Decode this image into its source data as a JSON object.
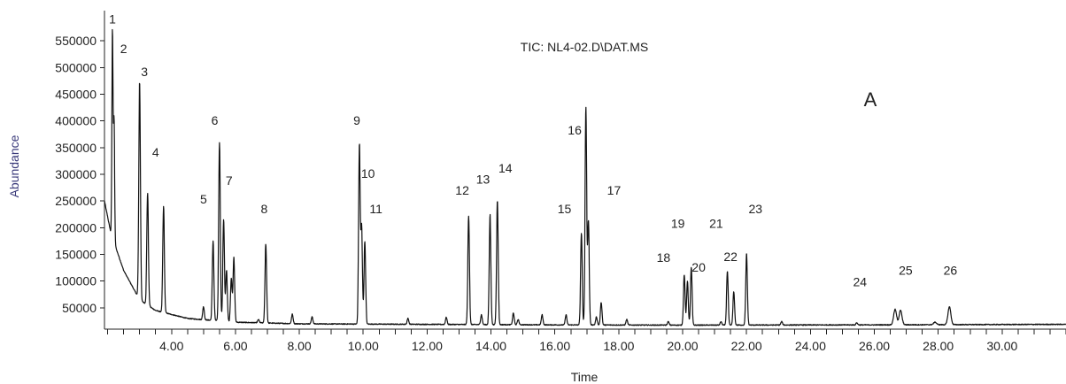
{
  "chart_data": {
    "type": "line",
    "title": "TIC: NL4-02.D\\DAT.MS",
    "panel_label": "A",
    "xlabel": "Time",
    "ylabel": "Abundance",
    "xlim": [
      1.9,
      32.0
    ],
    "ylim": [
      10000,
      600000
    ],
    "x_ticks": [
      "4.00",
      "6.00",
      "8.00",
      "10.00",
      "12.00",
      "14.00",
      "16.00",
      "18.00",
      "20.00",
      "22.00",
      "24.00",
      "26.00",
      "28.00",
      "30.00"
    ],
    "y_ticks": [
      "50000",
      "100000",
      "150000",
      "200000",
      "250000",
      "300000",
      "350000",
      "400000",
      "450000",
      "500000",
      "550000"
    ],
    "grid": false,
    "baseline": [
      [
        1.9,
        250000
      ],
      [
        2.1,
        190000
      ],
      [
        2.5,
        120000
      ],
      [
        3.0,
        65000
      ],
      [
        3.5,
        45000
      ],
      [
        4.5,
        30000
      ],
      [
        6,
        23000
      ],
      [
        8,
        20000
      ],
      [
        12,
        19000
      ],
      [
        16,
        18000
      ],
      [
        20,
        17500
      ],
      [
        26,
        18000
      ],
      [
        32,
        19000
      ]
    ],
    "peaks": [
      {
        "label": "1",
        "x": 2.15,
        "y": 570000
      },
      {
        "label": "2",
        "x": 2.2,
        "y": 400000
      },
      {
        "label": "3",
        "x": 3.0,
        "y": 475000
      },
      {
        "label": "4",
        "x": 3.25,
        "y": 265000
      },
      {
        "label": "",
        "x": 3.75,
        "y": 240000
      },
      {
        "label": "",
        "x": 5.0,
        "y": 52000
      },
      {
        "label": "5",
        "x": 5.3,
        "y": 175000
      },
      {
        "label": "6",
        "x": 5.5,
        "y": 360000
      },
      {
        "label": "7",
        "x": 5.63,
        "y": 215000
      },
      {
        "label": "",
        "x": 5.72,
        "y": 120000
      },
      {
        "label": "",
        "x": 5.87,
        "y": 105000
      },
      {
        "label": "",
        "x": 5.95,
        "y": 145000
      },
      {
        "label": "",
        "x": 6.72,
        "y": 28000
      },
      {
        "label": "8",
        "x": 6.95,
        "y": 170000
      },
      {
        "label": "",
        "x": 7.78,
        "y": 38000
      },
      {
        "label": "",
        "x": 8.4,
        "y": 33000
      },
      {
        "label": "9",
        "x": 9.88,
        "y": 355000
      },
      {
        "label": "10",
        "x": 9.95,
        "y": 200000
      },
      {
        "label": "11",
        "x": 10.05,
        "y": 175000
      },
      {
        "label": "",
        "x": 11.4,
        "y": 30000
      },
      {
        "label": "",
        "x": 12.6,
        "y": 32000
      },
      {
        "label": "12",
        "x": 13.3,
        "y": 222000
      },
      {
        "label": "",
        "x": 13.7,
        "y": 37000
      },
      {
        "label": "13",
        "x": 13.97,
        "y": 225000
      },
      {
        "label": "14",
        "x": 14.2,
        "y": 252000
      },
      {
        "label": "",
        "x": 14.7,
        "y": 40000
      },
      {
        "label": "",
        "x": 14.85,
        "y": 28000
      },
      {
        "label": "",
        "x": 15.6,
        "y": 37000
      },
      {
        "label": "",
        "x": 16.35,
        "y": 37000
      },
      {
        "label": "15",
        "x": 16.83,
        "y": 190000
      },
      {
        "label": "16",
        "x": 16.97,
        "y": 425000
      },
      {
        "label": "17",
        "x": 17.05,
        "y": 212000
      },
      {
        "label": "",
        "x": 17.3,
        "y": 33000
      },
      {
        "label": "",
        "x": 17.45,
        "y": 60000
      },
      {
        "label": "",
        "x": 18.25,
        "y": 28000
      },
      {
        "label": "",
        "x": 19.55,
        "y": 24000
      },
      {
        "label": "18",
        "x": 20.05,
        "y": 112000
      },
      {
        "label": "19",
        "x": 20.15,
        "y": 100000
      },
      {
        "label": "20",
        "x": 20.27,
        "y": 125000
      },
      {
        "label": "",
        "x": 21.2,
        "y": 24000
      },
      {
        "label": "21",
        "x": 21.4,
        "y": 118000
      },
      {
        "label": "22",
        "x": 21.6,
        "y": 80000
      },
      {
        "label": "23",
        "x": 22.0,
        "y": 152000
      },
      {
        "label": "",
        "x": 23.1,
        "y": 24000
      },
      {
        "label": "24",
        "x": 25.45,
        "y": 22000
      },
      {
        "label": "",
        "x": 26.65,
        "y": 47000
      },
      {
        "label": "25",
        "x": 26.82,
        "y": 45000
      },
      {
        "label": "",
        "x": 27.9,
        "y": 23000
      },
      {
        "label": "26",
        "x": 28.35,
        "y": 52000
      }
    ],
    "peak_labels": [
      {
        "text": "1",
        "x": 2.15,
        "y": 583000
      },
      {
        "text": "2",
        "x": 2.5,
        "y": 527000
      },
      {
        "text": "3",
        "x": 3.15,
        "y": 484000
      },
      {
        "text": "4",
        "x": 3.5,
        "y": 333000
      },
      {
        "text": "5",
        "x": 5.0,
        "y": 245000
      },
      {
        "text": "6",
        "x": 5.35,
        "y": 393000
      },
      {
        "text": "7",
        "x": 5.8,
        "y": 280000
      },
      {
        "text": "8",
        "x": 6.9,
        "y": 227000
      },
      {
        "text": "9",
        "x": 9.8,
        "y": 393000
      },
      {
        "text": "10",
        "x": 10.15,
        "y": 293000
      },
      {
        "text": "11",
        "x": 10.4,
        "y": 227000
      },
      {
        "text": "12",
        "x": 13.1,
        "y": 262000
      },
      {
        "text": "13",
        "x": 13.75,
        "y": 283000
      },
      {
        "text": "14",
        "x": 14.45,
        "y": 303000
      },
      {
        "text": "15",
        "x": 16.3,
        "y": 227000
      },
      {
        "text": "16",
        "x": 16.62,
        "y": 375000
      },
      {
        "text": "17",
        "x": 17.85,
        "y": 262000
      },
      {
        "text": "18",
        "x": 19.4,
        "y": 136000
      },
      {
        "text": "19",
        "x": 19.85,
        "y": 200000
      },
      {
        "text": "20",
        "x": 20.5,
        "y": 118000
      },
      {
        "text": "21",
        "x": 21.05,
        "y": 200000
      },
      {
        "text": "22",
        "x": 21.5,
        "y": 138000
      },
      {
        "text": "23",
        "x": 22.28,
        "y": 227000
      },
      {
        "text": "24",
        "x": 25.55,
        "y": 90000
      },
      {
        "text": "25",
        "x": 26.98,
        "y": 112000
      },
      {
        "text": "26",
        "x": 28.38,
        "y": 112000
      }
    ]
  }
}
